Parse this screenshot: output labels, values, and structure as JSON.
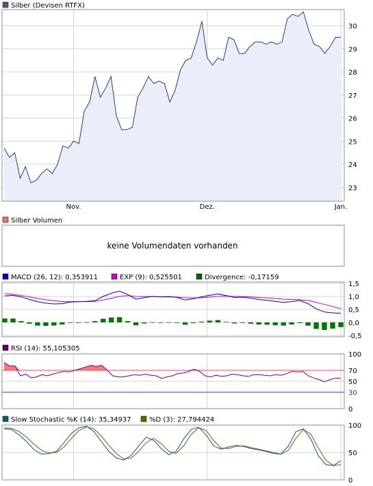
{
  "colors": {
    "grid": "#d4d4d4",
    "frame": "#909090",
    "price_line": "#2d3d73",
    "price_fill": "#eaeefa",
    "macd_line": "#0000cc",
    "exp_line": "#cc00cc",
    "divergence_bar": "#007700",
    "rsi_line": "#660099",
    "rsi_fill": "#ff7777",
    "rsi_70_line": "#e05050",
    "rsi_30_line": "#3333cc",
    "stoch_k_line": "#006666",
    "stoch_d_line": "#666600"
  },
  "price_panel": {
    "legend": "Silber (Devisen RTFX)",
    "legend_color": "#4a5a7a",
    "x_labels": [
      "Nov.",
      "Dez.",
      "Jan."
    ]
  },
  "volume_panel": {
    "legend": "Silber Volumen",
    "legend_color": "#f07070",
    "message": "keine Volumendaten vorhanden"
  },
  "macd_panel": {
    "legend_macd": "MACD (26, 12): 0,353911",
    "legend_exp": "EXP (9): 0,525501",
    "legend_div": "Divergence: -0,17159",
    "color_macd": "#0000cc",
    "color_exp": "#cc00cc",
    "color_div": "#006600"
  },
  "rsi_panel": {
    "legend": "RSI (14): 55,105305",
    "legend_color": "#660066"
  },
  "stoch_panel": {
    "legend_k": "Slow Stochastic %K (14): 35,34937",
    "legend_d": "%D (3): 27,794424",
    "color_k": "#006666",
    "color_d": "#666600"
  },
  "chart_data": [
    {
      "type": "area",
      "name": "Silber (Devisen RTFX)",
      "ylim": [
        22.4,
        30.7
      ],
      "yticks": [
        "23",
        "24",
        "25",
        "26",
        "27",
        "28",
        "29",
        "30"
      ],
      "ytick_values": [
        23,
        24,
        25,
        26,
        27,
        28,
        29,
        30
      ],
      "x_tick_index": [
        13,
        38,
        63
      ],
      "values": [
        24.7,
        24.3,
        24.5,
        23.4,
        23.9,
        23.2,
        23.3,
        23.6,
        23.8,
        23.6,
        24.0,
        24.8,
        24.7,
        25.0,
        24.9,
        26.3,
        26.7,
        27.8,
        26.9,
        27.3,
        27.8,
        26.1,
        25.5,
        25.5,
        25.6,
        26.9,
        27.3,
        27.8,
        27.5,
        27.6,
        27.5,
        26.7,
        27.2,
        28.1,
        28.5,
        28.6,
        29.3,
        30.2,
        28.6,
        28.3,
        28.6,
        28.5,
        29.5,
        29.4,
        28.8,
        28.8,
        29.1,
        29.3,
        29.3,
        29.2,
        29.3,
        29.2,
        29.3,
        30.3,
        30.5,
        30.4,
        30.6,
        29.8,
        29.2,
        29.1,
        28.8,
        29.1,
        29.5,
        29.5
      ]
    },
    {
      "type": "bar",
      "name": "Silber Volumen",
      "values": []
    },
    {
      "type": "line",
      "name": "MACD",
      "ylim": [
        -0.55,
        1.55
      ],
      "yticks": [
        "1,5",
        "1,0",
        "0,5",
        "0,0",
        "-0,5"
      ],
      "ytick_values": [
        1.5,
        1.0,
        0.5,
        0.0,
        -0.5
      ],
      "series": [
        {
          "name": "MACD (26, 12)",
          "values": [
            1.02,
            1.04,
            0.98,
            0.88,
            0.8,
            0.74,
            0.71,
            0.72,
            0.78,
            0.8,
            0.81,
            0.83,
            1.0,
            1.12,
            1.2,
            1.07,
            0.89,
            0.95,
            1.0,
            0.98,
            0.99,
            0.96,
            0.86,
            0.91,
            0.98,
            1.04,
            1.09,
            1.03,
            0.96,
            0.97,
            0.93,
            0.88,
            0.85,
            0.81,
            0.77,
            0.8,
            0.84,
            0.72,
            0.52,
            0.4,
            0.37,
            0.35
          ]
        },
        {
          "name": "EXP (9)",
          "values": [
            1.1,
            1.08,
            1.03,
            0.98,
            0.92,
            0.87,
            0.83,
            0.8,
            0.8,
            0.8,
            0.8,
            0.81,
            0.86,
            0.93,
            1.0,
            1.03,
            1.0,
            0.99,
            0.99,
            0.98,
            0.98,
            0.97,
            0.95,
            0.94,
            0.95,
            0.97,
            1.0,
            1.01,
            1.0,
            0.99,
            0.98,
            0.96,
            0.94,
            0.92,
            0.89,
            0.88,
            0.87,
            0.84,
            0.77,
            0.69,
            0.61,
            0.53
          ]
        },
        {
          "name": "Divergence",
          "values": [
            0.15,
            0.15,
            0.05,
            -0.05,
            -0.12,
            -0.13,
            -0.12,
            -0.08,
            -0.02,
            0.0,
            0.01,
            0.05,
            0.14,
            0.19,
            0.2,
            0.05,
            -0.11,
            -0.04,
            0.01,
            0.0,
            0.01,
            -0.01,
            -0.09,
            -0.03,
            0.03,
            0.07,
            0.09,
            0.02,
            -0.04,
            -0.02,
            -0.05,
            -0.08,
            -0.09,
            -0.11,
            -0.12,
            -0.08,
            -0.03,
            -0.12,
            -0.25,
            -0.29,
            -0.24,
            -0.18
          ]
        }
      ]
    },
    {
      "type": "line",
      "name": "RSI (14)",
      "ylim": [
        0,
        100
      ],
      "yticks": [
        "100",
        "70",
        "50",
        "30",
        "0"
      ],
      "ytick_values": [
        100,
        70,
        50,
        30,
        0
      ],
      "levels": [
        70,
        30
      ],
      "values": [
        84,
        78,
        78,
        60,
        63,
        56,
        58,
        62,
        60,
        63,
        66,
        68,
        67,
        70,
        73,
        76,
        79,
        77,
        79,
        70,
        60,
        58,
        58,
        60,
        62,
        61,
        63,
        61,
        60,
        55,
        58,
        60,
        64,
        65,
        68,
        72,
        68,
        60,
        58,
        61,
        59,
        60,
        63,
        62,
        60,
        59,
        62,
        62,
        61,
        60,
        62,
        61,
        64,
        68,
        67,
        68,
        60,
        56,
        53,
        49,
        53,
        56,
        55
      ]
    },
    {
      "type": "line",
      "name": "Slow Stochastic",
      "ylim": [
        0,
        100
      ],
      "yticks": [
        "100",
        "50",
        "0"
      ],
      "ytick_values": [
        100,
        50,
        0
      ],
      "series": [
        {
          "name": "Slow Stochastic %K (14)",
          "values": [
            93,
            92,
            82,
            70,
            55,
            47,
            48,
            52,
            68,
            85,
            95,
            98,
            88,
            70,
            52,
            40,
            36,
            45,
            62,
            78,
            72,
            57,
            46,
            52,
            75,
            92,
            96,
            82,
            62,
            56,
            60,
            63,
            61,
            57,
            55,
            52,
            48,
            47,
            62,
            88,
            93,
            74,
            44,
            28,
            26,
            35
          ]
        },
        {
          "name": "%D (3)",
          "values": [
            95,
            94,
            88,
            78,
            65,
            54,
            49,
            50,
            60,
            76,
            90,
            97,
            93,
            80,
            63,
            48,
            38,
            40,
            52,
            68,
            76,
            66,
            52,
            48,
            62,
            83,
            95,
            90,
            72,
            58,
            57,
            61,
            62,
            59,
            56,
            53,
            50,
            47,
            54,
            76,
            92,
            83,
            58,
            36,
            26,
            28
          ]
        }
      ]
    }
  ]
}
